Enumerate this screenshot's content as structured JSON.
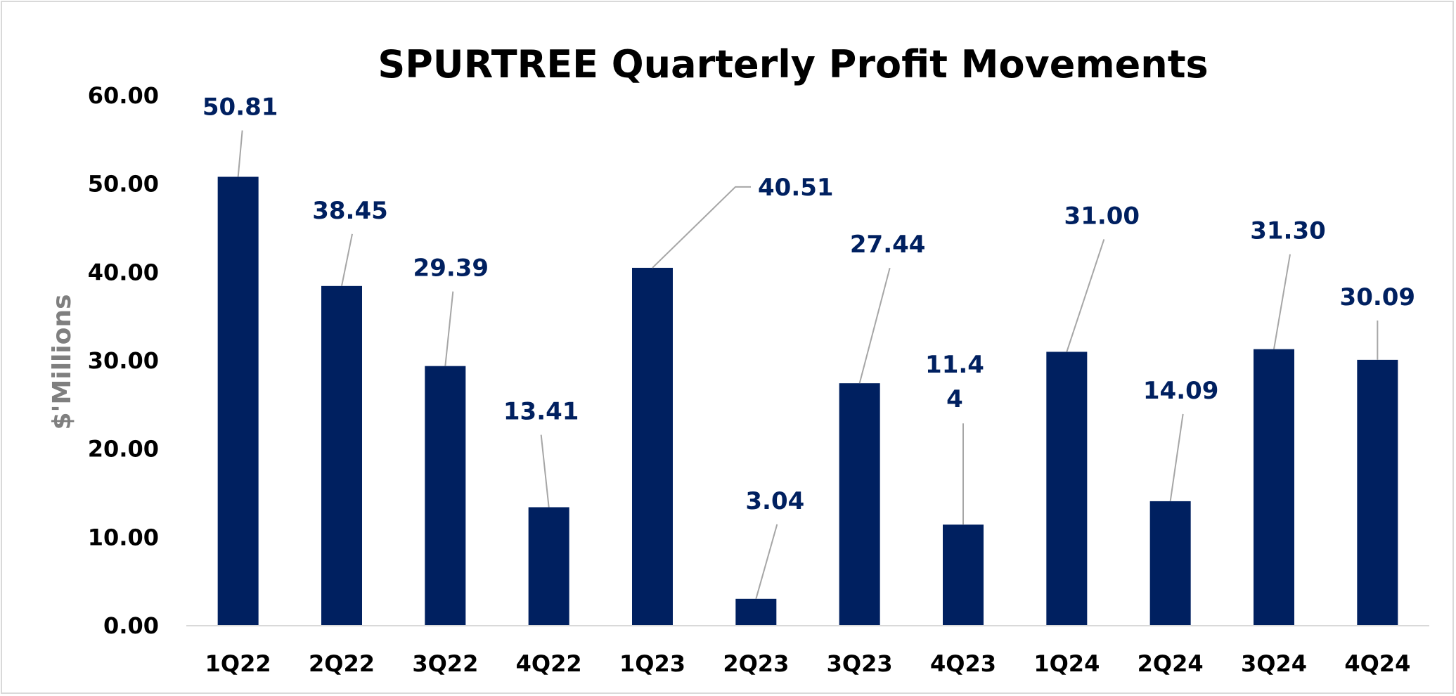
{
  "chart_data": {
    "type": "bar",
    "title": "SPURTREE Quarterly Profit Movements",
    "xlabel": "",
    "ylabel": "$'Millions",
    "categories": [
      "1Q22",
      "2Q22",
      "3Q22",
      "4Q22",
      "1Q23",
      "2Q23",
      "3Q23",
      "4Q23",
      "1Q24",
      "2Q24",
      "3Q24",
      "4Q24"
    ],
    "values": [
      50.81,
      38.45,
      29.39,
      13.41,
      40.51,
      3.04,
      27.44,
      11.44,
      31.0,
      14.09,
      31.3,
      30.09
    ],
    "data_labels": [
      "50.81",
      "38.45",
      "29.39",
      "13.41",
      "40.51",
      "3.04",
      "27.44",
      "11.44",
      "31.00",
      "14.09",
      "31.30",
      "30.09"
    ],
    "yticks": [
      "0.00",
      "10.00",
      "20.00",
      "30.00",
      "40.00",
      "50.00",
      "60.00"
    ],
    "ylim": [
      0,
      60
    ],
    "grid": false,
    "legend": "none",
    "colors": {
      "bar": "#002060",
      "data_label": "#002060",
      "leader_line": "#a6a6a6",
      "axis_line": "#d9d9d9",
      "ylabel": "#7f7f7f"
    }
  }
}
